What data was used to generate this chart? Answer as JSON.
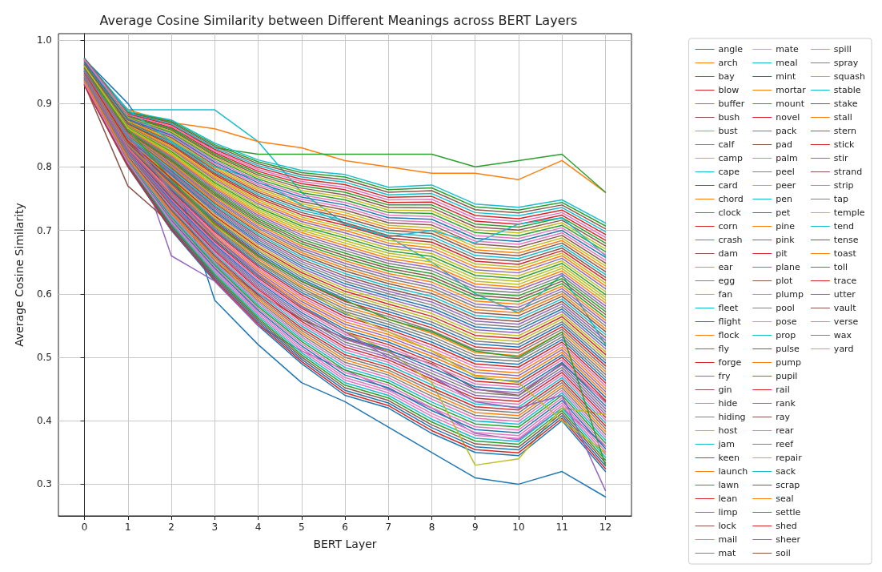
{
  "chart_data": {
    "type": "line",
    "title": "Average Cosine Similarity between Different Meanings across BERT Layers",
    "xlabel": "BERT Layer",
    "ylabel": "Average Cosine Similarity",
    "x": [
      0,
      1,
      2,
      3,
      4,
      5,
      6,
      7,
      8,
      9,
      10,
      11,
      12
    ],
    "xlim": [
      -0.6,
      12.6
    ],
    "xticks": [
      0,
      1,
      2,
      3,
      4,
      5,
      6,
      7,
      8,
      9,
      10,
      11,
      12
    ],
    "ylim": [
      0.25,
      1.01
    ],
    "yticks": [
      0.3,
      0.4,
      0.5,
      0.6,
      0.7,
      0.8,
      0.9,
      {
        "value": 1,
        "label": "1.0"
      }
    ],
    "grid": true,
    "legend": "right",
    "marker": "none",
    "line_style": "solid",
    "series": [
      {
        "name": "angle",
        "color": "#1f77b4",
        "values": [
          0.928,
          0.8,
          0.7,
          0.62,
          0.55,
          0.49,
          0.44,
          0.42,
          0.38,
          0.35,
          0.345,
          0.4,
          0.32
        ]
      },
      {
        "name": "arch",
        "color": "#ff7f0e",
        "values": [
          0.9415,
          0.827,
          0.754,
          0.6875,
          0.631,
          0.5845,
          0.548,
          0.528,
          0.5015,
          0.4715,
          0.4665,
          0.508,
          0.4415
        ]
      },
      {
        "name": "bay",
        "color": "#2ca02c",
        "values": [
          0.955,
          0.854,
          0.808,
          0.755,
          0.712,
          0.679,
          0.656,
          0.636,
          0.623,
          0.593,
          0.588,
          0.616,
          0.563
        ]
      },
      {
        "name": "blow",
        "color": "#d62728",
        "values": [
          0.9685,
          0.881,
          0.862,
          0.8225,
          0.793,
          0.7735,
          0.764,
          0.744,
          0.7445,
          0.7145,
          0.7095,
          0.724,
          0.6845
        ]
      },
      {
        "name": "buffer",
        "color": "#9467bd",
        "values": [
          0.938,
          0.82,
          0.74,
          0.67,
          0.61,
          0.56,
          0.52,
          0.5,
          0.47,
          0.44,
          0.435,
          0.48,
          0.41
        ]
      },
      {
        "name": "bush",
        "color": "#8c564b",
        "values": [
          0.9515,
          0.847,
          0.794,
          0.7375,
          0.691,
          0.6545,
          0.628,
          0.608,
          0.5915,
          0.5615,
          0.5565,
          0.588,
          0.5315
        ]
      },
      {
        "name": "bust",
        "color": "#e377c2",
        "values": [
          0.965,
          0.874,
          0.848,
          0.805,
          0.772,
          0.749,
          0.736,
          0.716,
          0.713,
          0.683,
          0.678,
          0.696,
          0.653
        ]
      },
      {
        "name": "calf",
        "color": "#7f7f7f",
        "values": [
          0.9345,
          0.813,
          0.726,
          0.6525,
          0.589,
          0.5355,
          0.492,
          0.472,
          0.4385,
          0.4085,
          0.4035,
          0.452,
          0.3785
        ]
      },
      {
        "name": "camp",
        "color": "#bcbd22",
        "values": [
          0.948,
          0.84,
          0.78,
          0.72,
          0.67,
          0.63,
          0.6,
          0.58,
          0.56,
          0.53,
          0.525,
          0.56,
          0.5
        ]
      },
      {
        "name": "cape",
        "color": "#17becf",
        "values": [
          0.97,
          0.89,
          0.89,
          0.89,
          0.84,
          0.76,
          0.71,
          0.69,
          0.65,
          0.6,
          0.57,
          0.63,
          0.52
        ]
      },
      {
        "name": "card",
        "color": "#1f77b4",
        "values": [
          0.97,
          0.9,
          0.8,
          0.59,
          0.52,
          0.46,
          0.43,
          0.39,
          0.35,
          0.31,
          0.3,
          0.32,
          0.28
        ]
      },
      {
        "name": "chord",
        "color": "#ff7f0e",
        "values": [
          0.96,
          0.89,
          0.87,
          0.86,
          0.84,
          0.83,
          0.81,
          0.8,
          0.79,
          0.79,
          0.78,
          0.81,
          0.76
        ]
      },
      {
        "name": "clock",
        "color": "#2ca02c",
        "values": [
          0.95,
          0.88,
          0.86,
          0.83,
          0.82,
          0.82,
          0.82,
          0.82,
          0.82,
          0.8,
          0.81,
          0.82,
          0.76
        ]
      },
      {
        "name": "corn",
        "color": "#d62728",
        "values": [
          0.9615,
          0.867,
          0.834,
          0.7875,
          0.751,
          0.7245,
          0.708,
          0.688,
          0.6815,
          0.6515,
          0.6465,
          0.668,
          0.6215
        ]
      },
      {
        "name": "crash",
        "color": "#9467bd",
        "values": [
          0.96,
          0.86,
          0.66,
          0.62,
          0.55,
          0.51,
          0.48,
          0.45,
          0.42,
          0.38,
          0.37,
          0.42,
          0.36
        ]
      },
      {
        "name": "dam",
        "color": "#8c564b",
        "values": [
          0.93,
          0.77,
          0.71,
          0.65,
          0.6,
          0.56,
          0.53,
          0.51,
          0.49,
          0.45,
          0.44,
          0.49,
          0.43
        ]
      },
      {
        "name": "ear",
        "color": "#e377c2",
        "values": [
          0.931,
          0.806,
          0.712,
          0.635,
          0.568,
          0.511,
          0.464,
          0.444,
          0.407,
          0.377,
          0.372,
          0.424,
          0.347
        ]
      },
      {
        "name": "egg",
        "color": "#7f7f7f",
        "values": [
          0.9445,
          0.833,
          0.766,
          0.7025,
          0.649,
          0.6055,
          0.572,
          0.552,
          0.5285,
          0.4985,
          0.4935,
          0.532,
          0.4685
        ]
      },
      {
        "name": "fan",
        "color": "#bcbd22",
        "values": [
          0.958,
          0.86,
          0.82,
          0.77,
          0.73,
          0.7,
          0.68,
          0.66,
          0.65,
          0.62,
          0.615,
          0.64,
          0.59
        ]
      },
      {
        "name": "fleet",
        "color": "#17becf",
        "values": [
          0.9715,
          0.887,
          0.874,
          0.8375,
          0.811,
          0.7945,
          0.788,
          0.768,
          0.7715,
          0.7415,
          0.7365,
          0.748,
          0.7115
        ]
      },
      {
        "name": "flight",
        "color": "#1f77b4",
        "values": [
          0.941,
          0.826,
          0.752,
          0.685,
          0.628,
          0.581,
          0.544,
          0.524,
          0.497,
          0.467,
          0.462,
          0.504,
          0.437
        ]
      },
      {
        "name": "flock",
        "color": "#ff7f0e",
        "values": [
          0.9545,
          0.853,
          0.806,
          0.7525,
          0.709,
          0.6755,
          0.652,
          0.632,
          0.6185,
          0.5885,
          0.5835,
          0.612,
          0.5585
        ]
      },
      {
        "name": "fly",
        "color": "#2ca02c",
        "values": [
          0.968,
          0.88,
          0.86,
          0.82,
          0.79,
          0.77,
          0.76,
          0.74,
          0.74,
          0.71,
          0.705,
          0.72,
          0.68
        ]
      },
      {
        "name": "forge",
        "color": "#d62728",
        "values": [
          0.9375,
          0.819,
          0.738,
          0.6675,
          0.607,
          0.5565,
          0.516,
          0.496,
          0.4655,
          0.4355,
          0.4305,
          0.476,
          0.4055
        ]
      },
      {
        "name": "fry",
        "color": "#9467bd",
        "values": [
          0.951,
          0.846,
          0.792,
          0.735,
          0.688,
          0.651,
          0.624,
          0.604,
          0.587,
          0.557,
          0.552,
          0.584,
          0.527
        ]
      },
      {
        "name": "gin",
        "color": "#8c564b",
        "values": [
          0.9645,
          0.873,
          0.846,
          0.8025,
          0.769,
          0.7455,
          0.732,
          0.712,
          0.7085,
          0.6785,
          0.6735,
          0.692,
          0.6485
        ]
      },
      {
        "name": "hide",
        "color": "#e377c2",
        "values": [
          0.934,
          0.812,
          0.724,
          0.65,
          0.586,
          0.532,
          0.488,
          0.468,
          0.434,
          0.404,
          0.399,
          0.448,
          0.374
        ]
      },
      {
        "name": "hiding",
        "color": "#7f7f7f",
        "values": [
          0.9475,
          0.839,
          0.778,
          0.7175,
          0.667,
          0.6265,
          0.596,
          0.576,
          0.5555,
          0.5255,
          0.5205,
          0.556,
          0.4955
        ]
      },
      {
        "name": "host",
        "color": "#bcbd22",
        "values": [
          0.961,
          0.866,
          0.832,
          0.785,
          0.748,
          0.721,
          0.704,
          0.684,
          0.677,
          0.647,
          0.642,
          0.664,
          0.617
        ]
      },
      {
        "name": "jam",
        "color": "#17becf",
        "values": [
          0.9305,
          0.805,
          0.71,
          0.6325,
          0.565,
          0.5075,
          0.46,
          0.44,
          0.4025,
          0.3725,
          0.3675,
          0.42,
          0.3425
        ]
      },
      {
        "name": "keen",
        "color": "#1f77b4",
        "values": [
          0.944,
          0.832,
          0.764,
          0.7,
          0.646,
          0.602,
          0.568,
          0.548,
          0.524,
          0.494,
          0.489,
          0.528,
          0.464
        ]
      },
      {
        "name": "launch",
        "color": "#ff7f0e",
        "values": [
          0.9575,
          0.859,
          0.818,
          0.7675,
          0.727,
          0.6965,
          0.676,
          0.656,
          0.6455,
          0.6155,
          0.6105,
          0.636,
          0.5855
        ]
      },
      {
        "name": "lawn",
        "color": "#2ca02c",
        "values": [
          0.971,
          0.886,
          0.872,
          0.835,
          0.808,
          0.791,
          0.784,
          0.764,
          0.767,
          0.737,
          0.732,
          0.744,
          0.707
        ]
      },
      {
        "name": "lean",
        "color": "#d62728",
        "values": [
          0.9405,
          0.825,
          0.75,
          0.6825,
          0.625,
          0.5775,
          0.54,
          0.52,
          0.4925,
          0.4625,
          0.4575,
          0.5,
          0.4325
        ]
      },
      {
        "name": "limp",
        "color": "#9467bd",
        "values": [
          0.954,
          0.852,
          0.804,
          0.75,
          0.706,
          0.672,
          0.648,
          0.628,
          0.614,
          0.584,
          0.579,
          0.608,
          0.554
        ]
      },
      {
        "name": "lock",
        "color": "#8c564b",
        "values": [
          0.9675,
          0.879,
          0.858,
          0.8175,
          0.787,
          0.7665,
          0.756,
          0.736,
          0.7355,
          0.7055,
          0.7005,
          0.716,
          0.6755
        ]
      },
      {
        "name": "mail",
        "color": "#e377c2",
        "values": [
          0.937,
          0.818,
          0.736,
          0.665,
          0.604,
          0.553,
          0.512,
          0.492,
          0.461,
          0.431,
          0.426,
          0.472,
          0.401
        ]
      },
      {
        "name": "mat",
        "color": "#7f7f7f",
        "values": [
          0.9505,
          0.845,
          0.79,
          0.7325,
          0.685,
          0.6475,
          0.62,
          0.6,
          0.5825,
          0.5525,
          0.5475,
          0.58,
          0.5225
        ]
      },
      {
        "name": "mate",
        "color": "#bcbd22",
        "values": [
          0.964,
          0.872,
          0.844,
          0.8,
          0.766,
          0.742,
          0.728,
          0.708,
          0.704,
          0.674,
          0.669,
          0.688,
          0.644
        ]
      },
      {
        "name": "meal",
        "color": "#17becf",
        "values": [
          0.9335,
          0.811,
          0.722,
          0.6475,
          0.583,
          0.5285,
          0.484,
          0.464,
          0.4295,
          0.3995,
          0.3945,
          0.444,
          0.3695
        ]
      },
      {
        "name": "mint",
        "color": "#1f77b4",
        "values": [
          0.947,
          0.838,
          0.776,
          0.715,
          0.664,
          0.623,
          0.592,
          0.572,
          0.551,
          0.521,
          0.516,
          0.552,
          0.491
        ]
      },
      {
        "name": "mortar",
        "color": "#ff7f0e",
        "values": [
          0.9605,
          0.865,
          0.83,
          0.7825,
          0.745,
          0.7175,
          0.7,
          0.68,
          0.6725,
          0.6425,
          0.6375,
          0.66,
          0.6125
        ]
      },
      {
        "name": "mount",
        "color": "#2ca02c",
        "values": [
          0.93,
          0.804,
          0.708,
          0.63,
          0.562,
          0.504,
          0.456,
          0.436,
          0.398,
          0.368,
          0.363,
          0.416,
          0.338
        ]
      },
      {
        "name": "novel",
        "color": "#d62728",
        "values": [
          0.9435,
          0.831,
          0.762,
          0.6975,
          0.643,
          0.5985,
          0.564,
          0.544,
          0.5195,
          0.4895,
          0.4845,
          0.524,
          0.4595
        ]
      },
      {
        "name": "pack",
        "color": "#9467bd",
        "values": [
          0.957,
          0.858,
          0.816,
          0.765,
          0.724,
          0.693,
          0.672,
          0.652,
          0.641,
          0.611,
          0.606,
          0.632,
          0.581
        ]
      },
      {
        "name": "pad",
        "color": "#8c564b",
        "values": [
          0.9705,
          0.885,
          0.87,
          0.8325,
          0.805,
          0.7875,
          0.78,
          0.76,
          0.7625,
          0.7325,
          0.7275,
          0.74,
          0.7025
        ]
      },
      {
        "name": "palm",
        "color": "#e377c2",
        "values": [
          0.94,
          0.824,
          0.748,
          0.68,
          0.622,
          0.574,
          0.536,
          0.516,
          0.488,
          0.458,
          0.453,
          0.496,
          0.428
        ]
      },
      {
        "name": "peel",
        "color": "#7f7f7f",
        "values": [
          0.9535,
          0.851,
          0.802,
          0.7475,
          0.703,
          0.6685,
          0.644,
          0.624,
          0.6095,
          0.5795,
          0.5745,
          0.604,
          0.5495
        ]
      },
      {
        "name": "peer",
        "color": "#bcbd22",
        "values": [
          0.967,
          0.878,
          0.856,
          0.815,
          0.784,
          0.763,
          0.752,
          0.732,
          0.731,
          0.701,
          0.696,
          0.712,
          0.671
        ]
      },
      {
        "name": "pen",
        "color": "#17becf",
        "values": [
          0.9365,
          0.817,
          0.734,
          0.6625,
          0.601,
          0.5495,
          0.508,
          0.488,
          0.4565,
          0.4265,
          0.4215,
          0.468,
          0.3965
        ]
      },
      {
        "name": "pet",
        "color": "#1f77b4",
        "values": [
          0.95,
          0.844,
          0.788,
          0.73,
          0.682,
          0.644,
          0.616,
          0.596,
          0.578,
          0.548,
          0.543,
          0.576,
          0.518
        ]
      },
      {
        "name": "pine",
        "color": "#ff7f0e",
        "values": [
          0.9635,
          0.871,
          0.842,
          0.7975,
          0.763,
          0.7385,
          0.724,
          0.704,
          0.6995,
          0.6695,
          0.6645,
          0.684,
          0.6395
        ]
      },
      {
        "name": "pink",
        "color": "#2ca02c",
        "values": [
          0.933,
          0.81,
          0.72,
          0.645,
          0.58,
          0.525,
          0.48,
          0.46,
          0.425,
          0.395,
          0.39,
          0.44,
          0.365
        ]
      },
      {
        "name": "pit",
        "color": "#d62728",
        "values": [
          0.9465,
          0.837,
          0.774,
          0.7125,
          0.661,
          0.6195,
          0.588,
          0.568,
          0.5465,
          0.5165,
          0.5115,
          0.548,
          0.4865
        ]
      },
      {
        "name": "plane",
        "color": "#9467bd",
        "values": [
          0.96,
          0.864,
          0.828,
          0.78,
          0.742,
          0.714,
          0.696,
          0.676,
          0.668,
          0.638,
          0.633,
          0.656,
          0.608
        ]
      },
      {
        "name": "plot",
        "color": "#8c564b",
        "values": [
          0.9295,
          0.803,
          0.706,
          0.6275,
          0.559,
          0.5005,
          0.452,
          0.432,
          0.3935,
          0.3635,
          0.3585,
          0.412,
          0.3335
        ]
      },
      {
        "name": "plump",
        "color": "#e377c2",
        "values": [
          0.943,
          0.83,
          0.76,
          0.695,
          0.64,
          0.595,
          0.56,
          0.54,
          0.515,
          0.485,
          0.48,
          0.52,
          0.455
        ]
      },
      {
        "name": "pool",
        "color": "#7f7f7f",
        "values": [
          0.9565,
          0.857,
          0.814,
          0.7625,
          0.721,
          0.6895,
          0.668,
          0.648,
          0.6365,
          0.6065,
          0.6015,
          0.628,
          0.5765
        ]
      },
      {
        "name": "pose",
        "color": "#bcbd22",
        "values": [
          0.95,
          0.85,
          0.76,
          0.69,
          0.63,
          0.58,
          0.54,
          0.51,
          0.46,
          0.33,
          0.34,
          0.42,
          0.41
        ]
      },
      {
        "name": "prop",
        "color": "#17becf",
        "values": [
          0.97,
          0.884,
          0.868,
          0.83,
          0.802,
          0.784,
          0.776,
          0.756,
          0.758,
          0.728,
          0.723,
          0.736,
          0.698
        ]
      },
      {
        "name": "pulse",
        "color": "#1f77b4",
        "values": [
          0.9395,
          0.823,
          0.746,
          0.6775,
          0.619,
          0.5705,
          0.532,
          0.512,
          0.4835,
          0.4535,
          0.4485,
          0.492,
          0.4235
        ]
      },
      {
        "name": "pump",
        "color": "#ff7f0e",
        "values": [
          0.953,
          0.85,
          0.8,
          0.745,
          0.7,
          0.665,
          0.64,
          0.62,
          0.605,
          0.575,
          0.57,
          0.6,
          0.545
        ]
      },
      {
        "name": "pupil",
        "color": "#2ca02c",
        "values": [
          0.9665,
          0.877,
          0.854,
          0.8125,
          0.781,
          0.7595,
          0.748,
          0.728,
          0.7265,
          0.6965,
          0.6915,
          0.708,
          0.6665
        ]
      },
      {
        "name": "rail",
        "color": "#d62728",
        "values": [
          0.936,
          0.816,
          0.732,
          0.66,
          0.598,
          0.546,
          0.504,
          0.484,
          0.452,
          0.422,
          0.417,
          0.464,
          0.392
        ]
      },
      {
        "name": "rank",
        "color": "#9467bd",
        "values": [
          0.9495,
          0.843,
          0.786,
          0.7275,
          0.679,
          0.6405,
          0.612,
          0.592,
          0.5735,
          0.5435,
          0.5385,
          0.572,
          0.5135
        ]
      },
      {
        "name": "ray",
        "color": "#8c564b",
        "values": [
          0.963,
          0.87,
          0.84,
          0.795,
          0.76,
          0.735,
          0.72,
          0.7,
          0.695,
          0.665,
          0.66,
          0.68,
          0.635
        ]
      },
      {
        "name": "rear",
        "color": "#e377c2",
        "values": [
          0.9325,
          0.809,
          0.718,
          0.6425,
          0.577,
          0.5215,
          0.476,
          0.456,
          0.4205,
          0.3905,
          0.3855,
          0.436,
          0.3605
        ]
      },
      {
        "name": "reef",
        "color": "#7f7f7f",
        "values": [
          0.946,
          0.836,
          0.772,
          0.71,
          0.658,
          0.616,
          0.584,
          0.564,
          0.542,
          0.512,
          0.507,
          0.544,
          0.482
        ]
      },
      {
        "name": "repair",
        "color": "#bcbd22",
        "values": [
          0.9595,
          0.863,
          0.826,
          0.7775,
          0.739,
          0.7105,
          0.692,
          0.672,
          0.6635,
          0.6335,
          0.6285,
          0.652,
          0.6035
        ]
      },
      {
        "name": "sack",
        "color": "#17becf",
        "values": [
          0.96,
          0.89,
          0.84,
          0.8,
          0.78,
          0.74,
          0.71,
          0.69,
          0.7,
          0.68,
          0.71,
          0.72,
          0.66
        ]
      },
      {
        "name": "scrap",
        "color": "#1f77b4",
        "values": [
          0.929,
          0.802,
          0.704,
          0.625,
          0.556,
          0.497,
          0.448,
          0.428,
          0.389,
          0.359,
          0.354,
          0.408,
          0.329
        ]
      },
      {
        "name": "seal",
        "color": "#ff7f0e",
        "values": [
          0.9425,
          0.829,
          0.758,
          0.6925,
          0.637,
          0.5915,
          0.556,
          0.536,
          0.5105,
          0.4805,
          0.4755,
          0.516,
          0.4505
        ]
      },
      {
        "name": "settle",
        "color": "#2ca02c",
        "values": [
          0.956,
          0.856,
          0.812,
          0.76,
          0.718,
          0.686,
          0.664,
          0.644,
          0.632,
          0.602,
          0.597,
          0.624,
          0.572
        ]
      },
      {
        "name": "shed",
        "color": "#d62728",
        "values": [
          0.9695,
          0.883,
          0.866,
          0.8275,
          0.799,
          0.7805,
          0.772,
          0.752,
          0.7535,
          0.7235,
          0.7185,
          0.732,
          0.6935
        ]
      },
      {
        "name": "sheer",
        "color": "#9467bd",
        "values": [
          0.939,
          0.822,
          0.744,
          0.675,
          0.616,
          0.567,
          0.528,
          0.508,
          0.479,
          0.449,
          0.444,
          0.488,
          0.419
        ]
      },
      {
        "name": "soil",
        "color": "#8c564b",
        "values": [
          0.9525,
          0.849,
          0.798,
          0.7425,
          0.697,
          0.6615,
          0.636,
          0.616,
          0.6005,
          0.5705,
          0.5655,
          0.596,
          0.5405
        ]
      },
      {
        "name": "spill",
        "color": "#e377c2",
        "values": [
          0.966,
          0.876,
          0.852,
          0.81,
          0.778,
          0.756,
          0.744,
          0.724,
          0.722,
          0.692,
          0.687,
          0.704,
          0.662
        ]
      },
      {
        "name": "spray",
        "color": "#7f7f7f",
        "values": [
          0.9355,
          0.815,
          0.73,
          0.6575,
          0.595,
          0.5425,
          0.5,
          0.48,
          0.4475,
          0.4175,
          0.4125,
          0.46,
          0.3875
        ]
      },
      {
        "name": "squash",
        "color": "#bcbd22",
        "values": [
          0.949,
          0.842,
          0.784,
          0.725,
          0.676,
          0.637,
          0.608,
          0.588,
          0.569,
          0.539,
          0.534,
          0.568,
          0.509
        ]
      },
      {
        "name": "stable",
        "color": "#17becf",
        "values": [
          0.9625,
          0.869,
          0.838,
          0.7925,
          0.757,
          0.7315,
          0.716,
          0.696,
          0.6905,
          0.6605,
          0.6555,
          0.676,
          0.6305
        ]
      },
      {
        "name": "stake",
        "color": "#1f77b4",
        "values": [
          0.932,
          0.808,
          0.716,
          0.64,
          0.574,
          0.518,
          0.472,
          0.452,
          0.416,
          0.386,
          0.381,
          0.432,
          0.356
        ]
      },
      {
        "name": "stall",
        "color": "#ff7f0e",
        "values": [
          0.9455,
          0.835,
          0.77,
          0.7075,
          0.655,
          0.6125,
          0.58,
          0.56,
          0.5375,
          0.5075,
          0.5025,
          0.54,
          0.4775
        ]
      },
      {
        "name": "stern",
        "color": "#2ca02c",
        "values": [
          0.959,
          0.862,
          0.824,
          0.775,
          0.736,
          0.707,
          0.688,
          0.668,
          0.659,
          0.629,
          0.624,
          0.648,
          0.599
        ]
      },
      {
        "name": "stick",
        "color": "#d62728",
        "values": [
          0.9285,
          0.801,
          0.702,
          0.6225,
          0.553,
          0.4935,
          0.444,
          0.424,
          0.3845,
          0.3545,
          0.3495,
          0.404,
          0.3245
        ]
      },
      {
        "name": "stir",
        "color": "#9467bd",
        "values": [
          0.942,
          0.828,
          0.756,
          0.69,
          0.634,
          0.588,
          0.552,
          0.532,
          0.506,
          0.476,
          0.471,
          0.512,
          0.446
        ]
      },
      {
        "name": "strand",
        "color": "#8c564b",
        "values": [
          0.9555,
          0.855,
          0.81,
          0.7575,
          0.715,
          0.6825,
          0.66,
          0.64,
          0.6275,
          0.5975,
          0.5925,
          0.62,
          0.5675
        ]
      },
      {
        "name": "strip",
        "color": "#e377c2",
        "values": [
          0.969,
          0.882,
          0.864,
          0.825,
          0.796,
          0.777,
          0.768,
          0.748,
          0.749,
          0.719,
          0.714,
          0.728,
          0.689
        ]
      },
      {
        "name": "tap",
        "color": "#7f7f7f",
        "values": [
          0.9385,
          0.821,
          0.742,
          0.6725,
          0.613,
          0.5635,
          0.524,
          0.504,
          0.4745,
          0.4445,
          0.4395,
          0.484,
          0.4145
        ]
      },
      {
        "name": "temple",
        "color": "#bcbd22",
        "values": [
          0.95,
          0.86,
          0.78,
          0.71,
          0.65,
          0.61,
          0.57,
          0.54,
          0.51,
          0.47,
          0.46,
          0.4,
          0.35
        ]
      },
      {
        "name": "tend",
        "color": "#17becf",
        "values": [
          0.952,
          0.848,
          0.796,
          0.74,
          0.694,
          0.658,
          0.632,
          0.612,
          0.596,
          0.566,
          0.561,
          0.592,
          0.536
        ]
      },
      {
        "name": "tense",
        "color": "#1f77b4",
        "values": [
          0.9655,
          0.875,
          0.85,
          0.8075,
          0.775,
          0.7525,
          0.74,
          0.72,
          0.7175,
          0.6875,
          0.6825,
          0.7,
          0.6575
        ]
      },
      {
        "name": "toast",
        "color": "#ff7f0e",
        "values": [
          0.935,
          0.814,
          0.728,
          0.655,
          0.592,
          0.539,
          0.496,
          0.476,
          0.443,
          0.413,
          0.408,
          0.456,
          0.383
        ]
      },
      {
        "name": "toll",
        "color": "#2ca02c",
        "values": [
          0.95,
          0.86,
          0.78,
          0.71,
          0.66,
          0.62,
          0.59,
          0.56,
          0.54,
          0.51,
          0.5,
          0.54,
          0.33
        ]
      },
      {
        "name": "trace",
        "color": "#d62728",
        "values": [
          0.9485,
          0.841,
          0.782,
          0.7225,
          0.673,
          0.6335,
          0.604,
          0.584,
          0.5645,
          0.5345,
          0.5295,
          0.564,
          0.5045
        ]
      },
      {
        "name": "utter",
        "color": "#9467bd",
        "values": [
          0.95,
          0.85,
          0.76,
          0.69,
          0.63,
          0.58,
          0.54,
          0.5,
          0.47,
          0.43,
          0.42,
          0.44,
          0.29
        ]
      },
      {
        "name": "vault",
        "color": "#8c564b",
        "values": [
          0.962,
          0.868,
          0.836,
          0.79,
          0.754,
          0.728,
          0.712,
          0.692,
          0.686,
          0.656,
          0.651,
          0.672,
          0.626
        ]
      },
      {
        "name": "verse",
        "color": "#e377c2",
        "values": [
          0.9315,
          0.807,
          0.714,
          0.6375,
          0.571,
          0.5145,
          0.468,
          0.448,
          0.4115,
          0.3815,
          0.3765,
          0.428,
          0.3515
        ]
      },
      {
        "name": "wax",
        "color": "#7f7f7f",
        "values": [
          0.945,
          0.834,
          0.768,
          0.705,
          0.652,
          0.609,
          0.576,
          0.556,
          0.533,
          0.503,
          0.498,
          0.536,
          0.473
        ]
      },
      {
        "name": "yard",
        "color": "#bcbd22",
        "values": [
          0.9585,
          0.861,
          0.822,
          0.7725,
          0.733,
          0.7035,
          0.684,
          0.664,
          0.6545,
          0.6245,
          0.6195,
          0.644,
          0.5945
        ]
      }
    ]
  }
}
